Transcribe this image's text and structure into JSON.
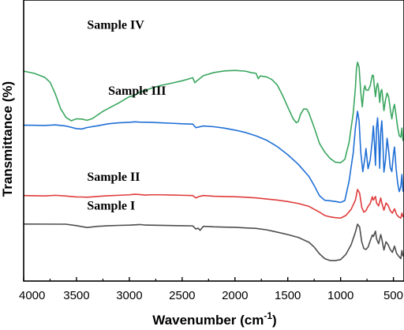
{
  "chart_data": {
    "type": "line",
    "xlabel": {
      "main": "Wavenumber (cm",
      "sup": "-1",
      "tail": ")"
    },
    "ylabel": "Transmittance (%)",
    "x_axis": {
      "reversed": true,
      "range": [
        4000,
        400
      ],
      "ticks": [
        "4000",
        "3500",
        "3000",
        "2500",
        "2000",
        "1500",
        "1000",
        "500"
      ]
    },
    "y_axis": {
      "tick_labels_shown": false
    },
    "grid": false,
    "y_scale": {
      "min": -10,
      "max": 340
    },
    "series": [
      {
        "name": "Sample I",
        "color": "#4d4d4d",
        "points": [
          [
            4000,
            61.0
          ],
          [
            3800,
            60.9
          ],
          [
            3600,
            60.8
          ],
          [
            3500,
            59.0
          ],
          [
            3400,
            56.7
          ],
          [
            3300,
            58.1
          ],
          [
            3200,
            58.9
          ],
          [
            3100,
            59.3
          ],
          [
            3000,
            59.6
          ],
          [
            2950,
            60.0
          ],
          [
            2900,
            60.4
          ],
          [
            2850,
            59.7
          ],
          [
            2800,
            59.6
          ],
          [
            2700,
            59.4
          ],
          [
            2600,
            59.1
          ],
          [
            2500,
            58.9
          ],
          [
            2400,
            58.7
          ],
          [
            2370,
            54.8
          ],
          [
            2350,
            55.9
          ],
          [
            2330,
            53.2
          ],
          [
            2300,
            58.1
          ],
          [
            2200,
            57.5
          ],
          [
            2100,
            57.2
          ],
          [
            2000,
            56.9
          ],
          [
            1900,
            56.2
          ],
          [
            1800,
            55.6
          ],
          [
            1700,
            53.8
          ],
          [
            1600,
            50.9
          ],
          [
            1500,
            47.9
          ],
          [
            1400,
            44.3
          ],
          [
            1300,
            38.3
          ],
          [
            1250,
            32.3
          ],
          [
            1200,
            23.9
          ],
          [
            1150,
            17.9
          ],
          [
            1100,
            15.5
          ],
          [
            1050,
            15.5
          ],
          [
            1000,
            16.7
          ],
          [
            950,
            23.3
          ],
          [
            900,
            35.3
          ],
          [
            860,
            50.9
          ],
          [
            840,
            60.8
          ],
          [
            820,
            57.2
          ],
          [
            800,
            38.9
          ],
          [
            780,
            30.5
          ],
          [
            760,
            29.3
          ],
          [
            740,
            32.3
          ],
          [
            720,
            40.1
          ],
          [
            700,
            47.3
          ],
          [
            690,
            45.5
          ],
          [
            670,
            52.1
          ],
          [
            660,
            42.5
          ],
          [
            640,
            36.5
          ],
          [
            620,
            47.9
          ],
          [
            610,
            42.5
          ],
          [
            590,
            28.7
          ],
          [
            570,
            38.9
          ],
          [
            550,
            35.3
          ],
          [
            530,
            29.3
          ],
          [
            510,
            25.7
          ],
          [
            490,
            33.5
          ],
          [
            470,
            24.5
          ],
          [
            450,
            20.9
          ],
          [
            430,
            17.9
          ],
          [
            420,
            28.1
          ],
          [
            410,
            21.5
          ]
        ]
      },
      {
        "name": "Sample II",
        "color": "#e03c3c",
        "points": [
          [
            4000,
            96.5
          ],
          [
            3900,
            96.2
          ],
          [
            3800,
            96.0
          ],
          [
            3700,
            96.8
          ],
          [
            3600,
            95.9
          ],
          [
            3500,
            94.8
          ],
          [
            3450,
            94.7
          ],
          [
            3400,
            94.4
          ],
          [
            3300,
            95.4
          ],
          [
            3200,
            96.2
          ],
          [
            3100,
            96.8
          ],
          [
            3000,
            97.4
          ],
          [
            2950,
            98.1
          ],
          [
            2900,
            97.7
          ],
          [
            2850,
            97.1
          ],
          [
            2800,
            97.4
          ],
          [
            2700,
            97.4
          ],
          [
            2600,
            97.1
          ],
          [
            2500,
            96.8
          ],
          [
            2400,
            96.5
          ],
          [
            2370,
            93.5
          ],
          [
            2340,
            95.3
          ],
          [
            2300,
            96.5
          ],
          [
            2200,
            95.6
          ],
          [
            2100,
            95.3
          ],
          [
            2000,
            95.0
          ],
          [
            1900,
            94.4
          ],
          [
            1800,
            93.5
          ],
          [
            1700,
            92.2
          ],
          [
            1600,
            90.8
          ],
          [
            1500,
            89.0
          ],
          [
            1400,
            86.6
          ],
          [
            1300,
            83.0
          ],
          [
            1250,
            79.4
          ],
          [
            1200,
            75.8
          ],
          [
            1150,
            71.7
          ],
          [
            1100,
            69.9
          ],
          [
            1050,
            69.0
          ],
          [
            1000,
            68.4
          ],
          [
            950,
            71.7
          ],
          [
            900,
            79.4
          ],
          [
            860,
            90.8
          ],
          [
            840,
            104.0
          ],
          [
            820,
            99.5
          ],
          [
            800,
            81.8
          ],
          [
            780,
            75.8
          ],
          [
            760,
            77.6
          ],
          [
            740,
            83.0
          ],
          [
            720,
            86.6
          ],
          [
            700,
            95.0
          ],
          [
            690,
            90.8
          ],
          [
            670,
            95.3
          ],
          [
            660,
            87.2
          ],
          [
            640,
            83.6
          ],
          [
            620,
            93.5
          ],
          [
            610,
            87.2
          ],
          [
            590,
            78.2
          ],
          [
            570,
            87.2
          ],
          [
            550,
            84.2
          ],
          [
            530,
            77.6
          ],
          [
            510,
            74.6
          ],
          [
            490,
            80.0
          ],
          [
            470,
            72.8
          ],
          [
            450,
            69.9
          ],
          [
            430,
            68.4
          ],
          [
            420,
            74.6
          ],
          [
            410,
            70.4
          ]
        ]
      },
      {
        "name": "Sample III",
        "color": "#1f6fd6",
        "points": [
          [
            4000,
            184.1
          ],
          [
            3900,
            184.0
          ],
          [
            3800,
            183.7
          ],
          [
            3700,
            184.5
          ],
          [
            3600,
            183.1
          ],
          [
            3500,
            179.8
          ],
          [
            3450,
            179.3
          ],
          [
            3400,
            181.2
          ],
          [
            3300,
            183.4
          ],
          [
            3200,
            185.8
          ],
          [
            3100,
            187.1
          ],
          [
            3000,
            187.7
          ],
          [
            2950,
            188.3
          ],
          [
            2900,
            187.9
          ],
          [
            2800,
            187.7
          ],
          [
            2700,
            187.1
          ],
          [
            2600,
            186.5
          ],
          [
            2500,
            185.8
          ],
          [
            2400,
            185.5
          ],
          [
            2370,
            181.0
          ],
          [
            2340,
            181.9
          ],
          [
            2300,
            183.1
          ],
          [
            2200,
            182.2
          ],
          [
            2100,
            180.4
          ],
          [
            2000,
            178.0
          ],
          [
            1900,
            175.0
          ],
          [
            1800,
            170.8
          ],
          [
            1700,
            165.4
          ],
          [
            1600,
            157.5
          ],
          [
            1500,
            147.3
          ],
          [
            1400,
            135.3
          ],
          [
            1300,
            120.3
          ],
          [
            1250,
            108.9
          ],
          [
            1200,
            96.3
          ],
          [
            1150,
            90.6
          ],
          [
            1100,
            90.0
          ],
          [
            1050,
            89.1
          ],
          [
            1000,
            87.9
          ],
          [
            960,
            90.3
          ],
          [
            920,
            114.3
          ],
          [
            880,
            150.3
          ],
          [
            860,
            180.4
          ],
          [
            840,
            201.4
          ],
          [
            825,
            189.4
          ],
          [
            810,
            151.5
          ],
          [
            790,
            126.3
          ],
          [
            770,
            143.1
          ],
          [
            760,
            155.1
          ],
          [
            740,
            129.9
          ],
          [
            720,
            140.7
          ],
          [
            700,
            166.0
          ],
          [
            690,
            183.1
          ],
          [
            680,
            162.4
          ],
          [
            670,
            134.1
          ],
          [
            660,
            180.4
          ],
          [
            650,
            193.2
          ],
          [
            640,
            169.0
          ],
          [
            630,
            130.5
          ],
          [
            620,
            175.6
          ],
          [
            610,
            189.4
          ],
          [
            600,
            162.4
          ],
          [
            590,
            125.7
          ],
          [
            575,
            140.7
          ],
          [
            560,
            167.8
          ],
          [
            545,
            152.1
          ],
          [
            530,
            131.1
          ],
          [
            515,
            126.3
          ],
          [
            500,
            147.9
          ],
          [
            490,
            156.9
          ],
          [
            475,
            130.5
          ],
          [
            460,
            111.9
          ],
          [
            445,
            101.4
          ],
          [
            430,
            107.4
          ],
          [
            420,
            122.7
          ],
          [
            410,
            102.0
          ]
        ]
      },
      {
        "name": "Sample IV",
        "color": "#3aa65f",
        "points": [
          [
            4000,
            251.4
          ],
          [
            3900,
            248.7
          ],
          [
            3800,
            243.6
          ],
          [
            3750,
            237.6
          ],
          [
            3700,
            222.9
          ],
          [
            3650,
            204.6
          ],
          [
            3600,
            193.8
          ],
          [
            3550,
            189.6
          ],
          [
            3500,
            192.0
          ],
          [
            3450,
            191.7
          ],
          [
            3400,
            190.2
          ],
          [
            3350,
            192.3
          ],
          [
            3300,
            196.8
          ],
          [
            3250,
            201.3
          ],
          [
            3200,
            204.9
          ],
          [
            3100,
            211.8
          ],
          [
            3000,
            219.6
          ],
          [
            2950,
            221.1
          ],
          [
            2900,
            225.3
          ],
          [
            2800,
            229.8
          ],
          [
            2700,
            233.7
          ],
          [
            2600,
            236.4
          ],
          [
            2500,
            239.4
          ],
          [
            2450,
            241.2
          ],
          [
            2400,
            243.3
          ],
          [
            2380,
            237.0
          ],
          [
            2360,
            239.4
          ],
          [
            2340,
            241.5
          ],
          [
            2300,
            245.7
          ],
          [
            2200,
            249.6
          ],
          [
            2100,
            251.7
          ],
          [
            2000,
            252.3
          ],
          [
            1900,
            251.4
          ],
          [
            1850,
            249.6
          ],
          [
            1800,
            248.7
          ],
          [
            1780,
            242.1
          ],
          [
            1760,
            245.4
          ],
          [
            1700,
            244.2
          ],
          [
            1650,
            240.9
          ],
          [
            1600,
            234.3
          ],
          [
            1550,
            221.4
          ],
          [
            1500,
            206.7
          ],
          [
            1450,
            192.3
          ],
          [
            1420,
            187.2
          ],
          [
            1400,
            188.7
          ],
          [
            1380,
            197.4
          ],
          [
            1350,
            204.3
          ],
          [
            1320,
            204.0
          ],
          [
            1300,
            199.2
          ],
          [
            1250,
            181.2
          ],
          [
            1200,
            161.4
          ],
          [
            1150,
            150.6
          ],
          [
            1100,
            142.8
          ],
          [
            1050,
            138.0
          ],
          [
            1000,
            137.4
          ],
          [
            960,
            141.6
          ],
          [
            920,
            162.6
          ],
          [
            880,
            199.8
          ],
          [
            860,
            230.4
          ],
          [
            850,
            254.4
          ],
          [
            840,
            262.5
          ],
          [
            825,
            256.2
          ],
          [
            810,
            226.5
          ],
          [
            795,
            207.0
          ],
          [
            780,
            228.0
          ],
          [
            770,
            233.4
          ],
          [
            760,
            228.0
          ],
          [
            740,
            227.4
          ],
          [
            720,
            233.1
          ],
          [
            700,
            246.3
          ],
          [
            690,
            246.0
          ],
          [
            680,
            231.6
          ],
          [
            670,
            219.6
          ],
          [
            660,
            231.0
          ],
          [
            650,
            236.4
          ],
          [
            640,
            228.6
          ],
          [
            630,
            212.4
          ],
          [
            620,
            225.6
          ],
          [
            610,
            228.6
          ],
          [
            600,
            216.0
          ],
          [
            590,
            202.2
          ],
          [
            575,
            215.7
          ],
          [
            560,
            224.1
          ],
          [
            545,
            219.0
          ],
          [
            530,
            204.0
          ],
          [
            515,
            192.0
          ],
          [
            500,
            205.2
          ],
          [
            490,
            210.0
          ],
          [
            475,
            196.2
          ],
          [
            460,
            181.2
          ],
          [
            445,
            171.0
          ],
          [
            430,
            169.2
          ],
          [
            420,
            180.6
          ],
          [
            410,
            165.0
          ]
        ]
      }
    ]
  }
}
